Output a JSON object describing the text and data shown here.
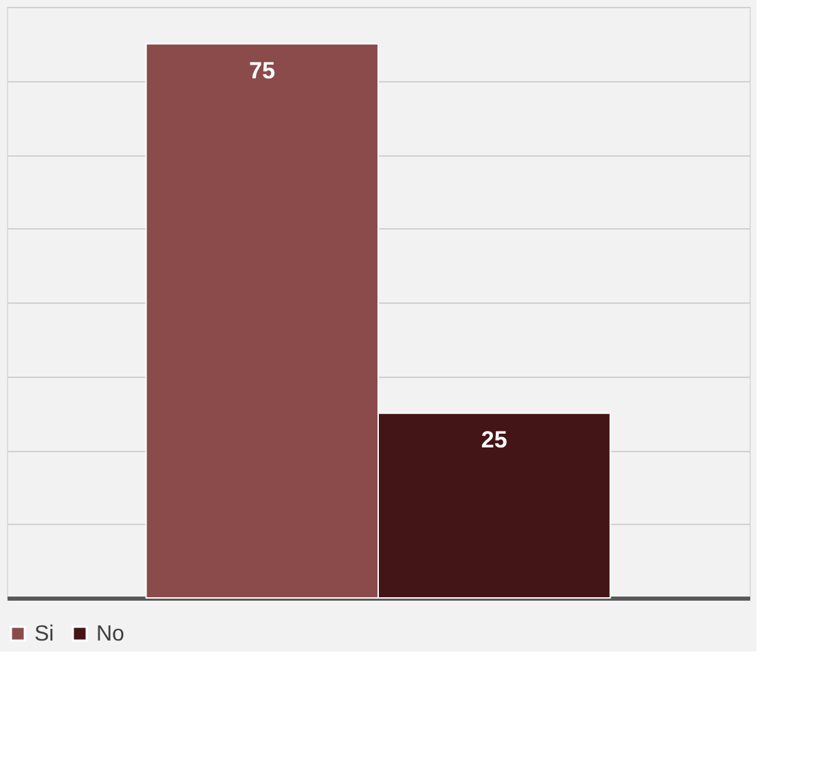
{
  "chart_data": {
    "type": "bar",
    "categories": [
      null
    ],
    "series": [
      {
        "name": "Si",
        "color": "#8b4b4b",
        "values": [
          75
        ]
      },
      {
        "name": "No",
        "color": "#431516",
        "values": [
          25
        ]
      }
    ],
    "ylim": [
      0,
      80
    ],
    "yticks": [
      {
        "value": 0,
        "label": null
      },
      {
        "value": 10,
        "label": null
      },
      {
        "value": 20,
        "label": null
      },
      {
        "value": 30,
        "label": null
      },
      {
        "value": 40,
        "label": null
      },
      {
        "value": 50,
        "label": null
      },
      {
        "value": 60,
        "label": null
      },
      {
        "value": 70,
        "label": null
      },
      {
        "value": 80,
        "label": null
      }
    ],
    "grid": "y",
    "legend": "bottom",
    "data_labels": true,
    "tick_labels": false
  }
}
